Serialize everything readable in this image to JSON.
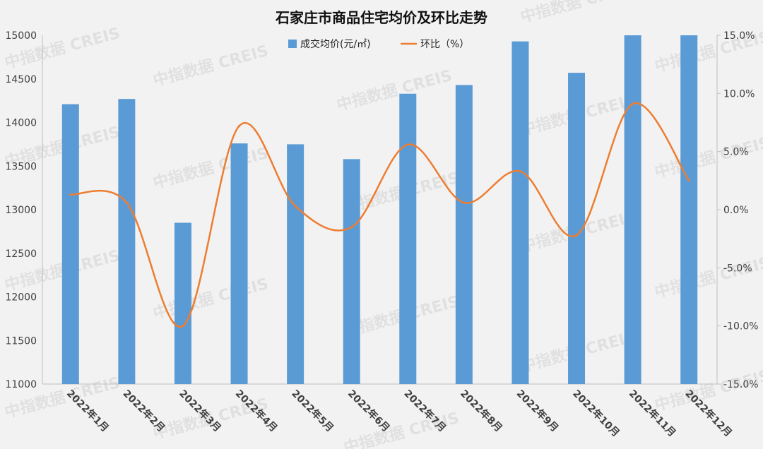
{
  "watermark_text": "中指数据 CREIS",
  "chart_data": {
    "type": "bar",
    "title": "石家庄市商品住宅均价及环比走势",
    "categories": [
      "2022年1月",
      "2022年2月",
      "2022年3月",
      "2022年4月",
      "2022年5月",
      "2022年6月",
      "2022年7月",
      "2022年8月",
      "2022年9月",
      "2022年10月",
      "2022年11月",
      "2022年12月"
    ],
    "series": [
      {
        "name": "成交均价(元/㎡)",
        "type": "bar",
        "axis": "left",
        "color": "#5b9bd5",
        "values": [
          14210,
          14270,
          12850,
          13760,
          13750,
          13580,
          14330,
          14430,
          14930,
          14570,
          15000,
          15000
        ]
      },
      {
        "name": "环比（%）",
        "type": "line",
        "axis": "right",
        "color": "#ed7d31",
        "values": [
          1.3,
          0.6,
          -10.0,
          7.2,
          0.3,
          -1.5,
          5.6,
          0.6,
          3.3,
          -2.2,
          9.1,
          2.5
        ]
      }
    ],
    "y_left": {
      "min": 11000,
      "max": 15000,
      "ticks": [
        "11000",
        "11500",
        "12000",
        "12500",
        "13000",
        "13500",
        "14000",
        "14500",
        "15000"
      ]
    },
    "y_right": {
      "min": -15,
      "max": 15,
      "ticks": [
        "-15.0%",
        "-10.0%",
        "-5.0%",
        "0.0%",
        "5.0%",
        "10.0%",
        "15.0%"
      ]
    },
    "grid": false,
    "legend_position": "top-center"
  }
}
